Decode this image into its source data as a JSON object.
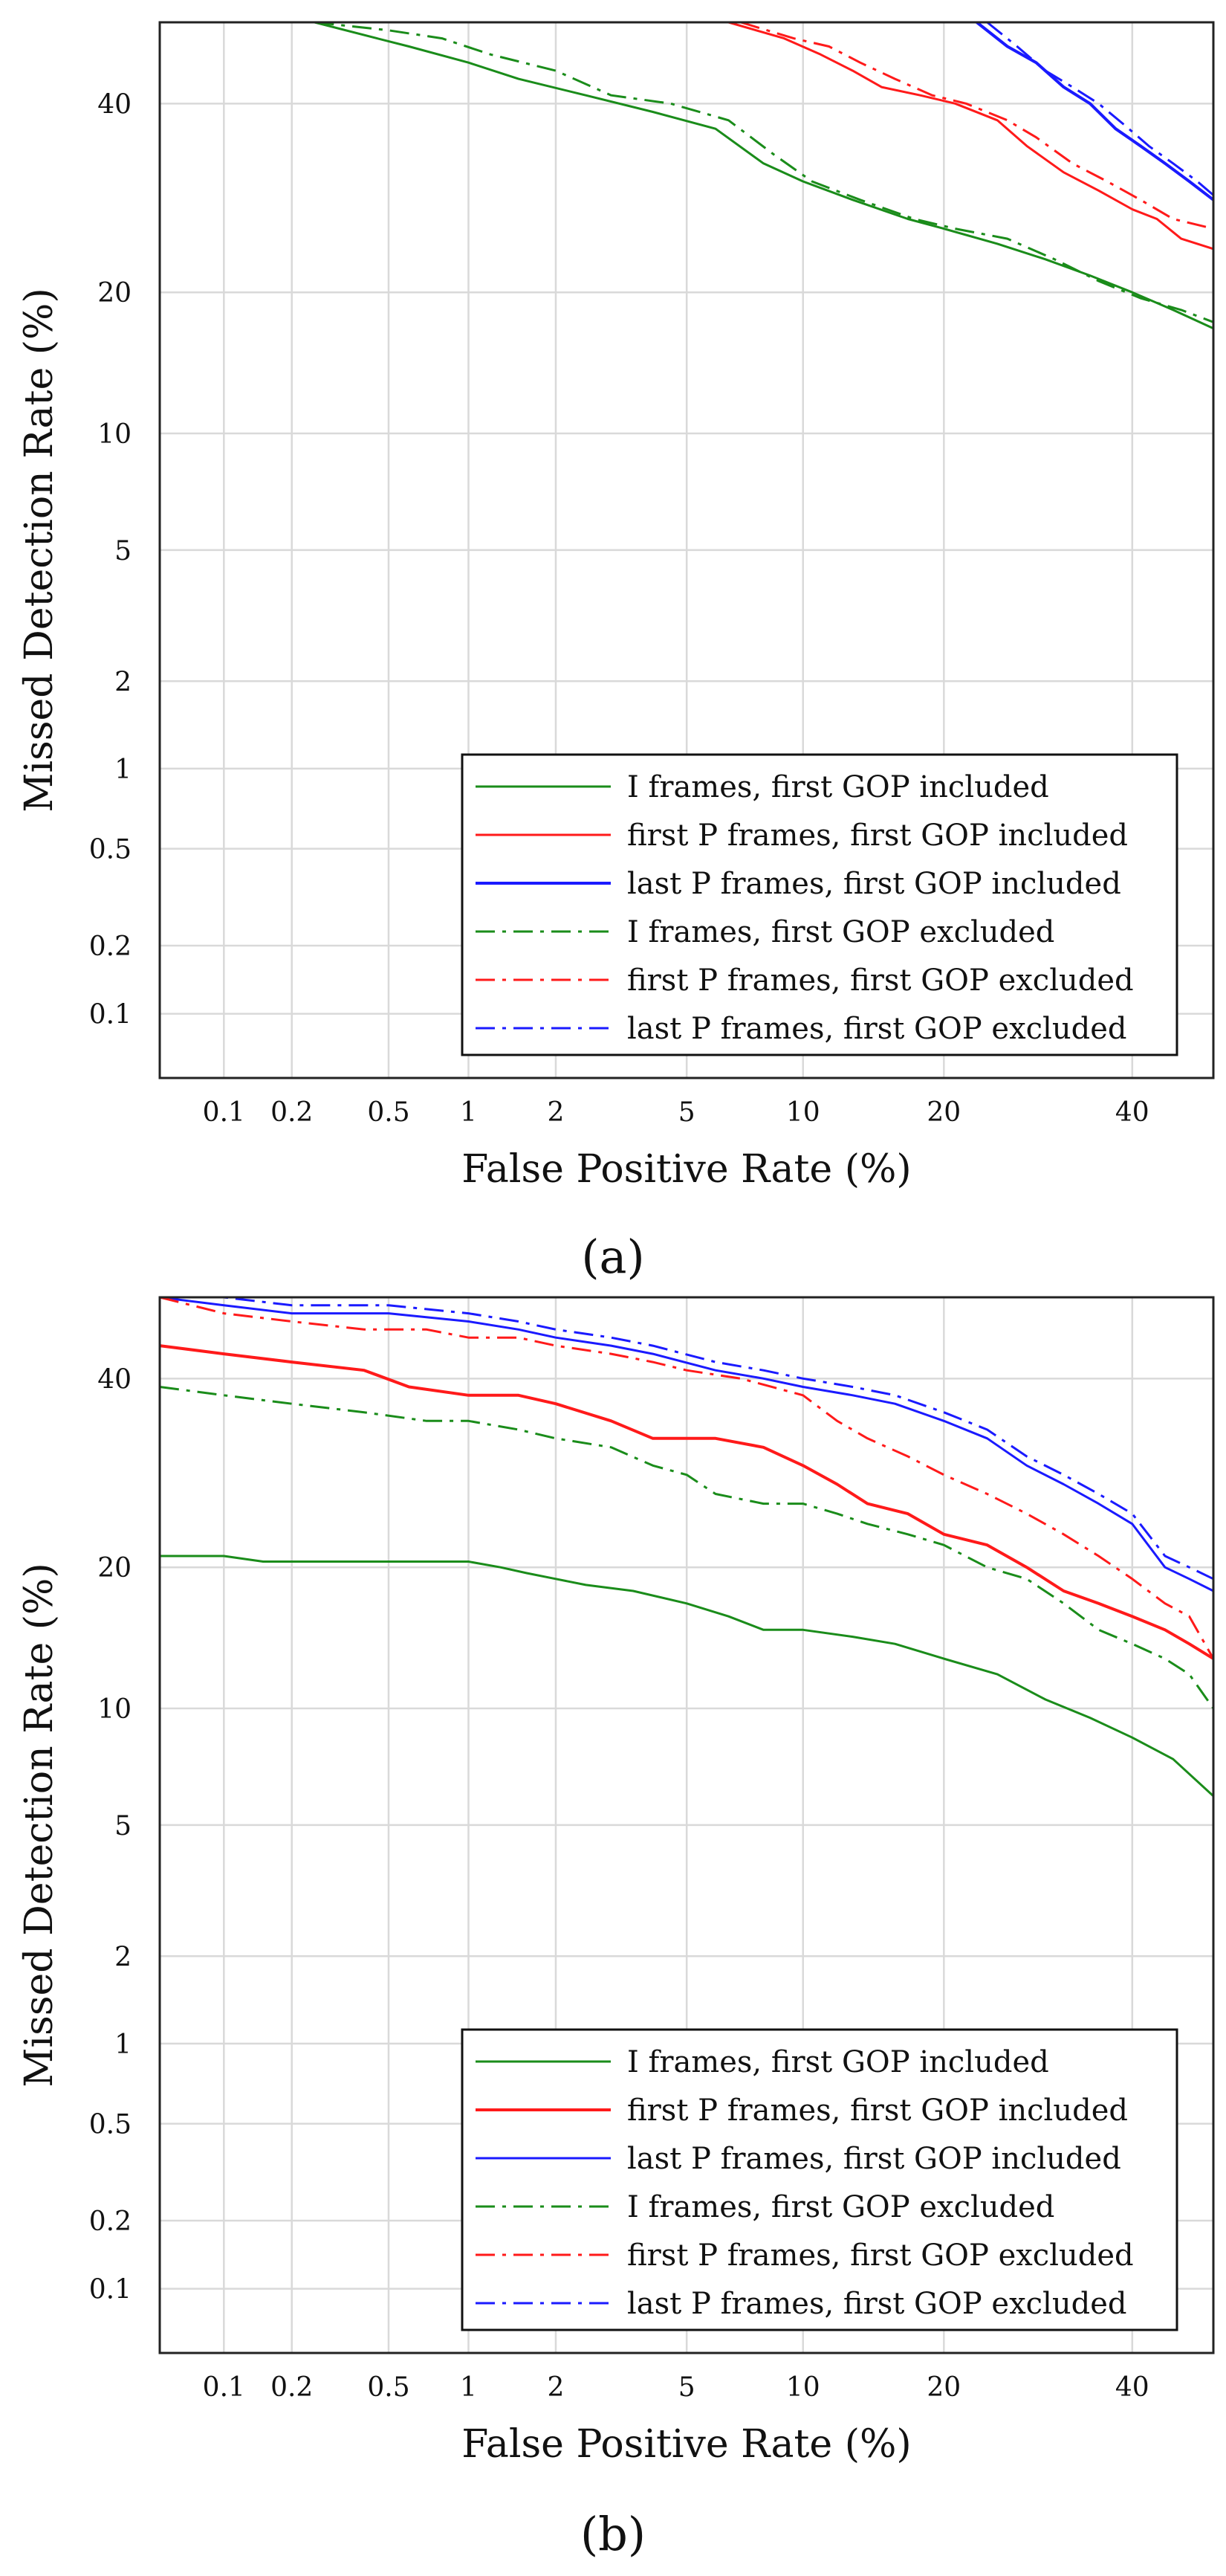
{
  "colors": {
    "green": "#1a8c1a",
    "red": "#ff1a1a",
    "blue": "#1a1aff",
    "grid": "#d9d9d9",
    "axis": "#222222"
  },
  "chart_data": [
    {
      "type": "line",
      "panel_label": "(a)",
      "xscale": "normal-deviate",
      "yscale": "normal-deviate",
      "xlabel": "False Positive Rate (%)",
      "ylabel": "Missed Detection Rate (%)",
      "xlim": [
        0.05,
        50
      ],
      "ylim": [
        0.05,
        50
      ],
      "xticks": [
        0.1,
        0.2,
        0.5,
        1,
        2,
        5,
        10,
        20,
        40
      ],
      "xtick_labels": [
        "0.1",
        "0.2",
        "0.5",
        "1",
        "2",
        "5",
        "10",
        "20",
        "40"
      ],
      "yticks": [
        0.1,
        0.2,
        0.5,
        1,
        2,
        5,
        10,
        20,
        40
      ],
      "ytick_labels": [
        "0.1",
        "0.2",
        "0.5",
        "1",
        "2",
        "5",
        "10",
        "20",
        "40"
      ],
      "grid": true,
      "legend_position": "bottom-right",
      "series": [
        {
          "name": "I frames, first GOP included",
          "color": "green",
          "dash": "solid",
          "width": 3,
          "x": [
            0.25,
            0.45,
            0.6,
            1.0,
            1.5,
            2.5,
            4.0,
            6.0,
            8.0,
            10.0,
            13.0,
            17.0,
            20.0,
            25.0,
            30.0,
            35.0,
            40.0,
            45.0,
            50.0
          ],
          "y": [
            50,
            48,
            47,
            45,
            43,
            41,
            39,
            37,
            33,
            31,
            29,
            27,
            26,
            24.5,
            23,
            21.5,
            20,
            18.5,
            17
          ]
        },
        {
          "name": "first P frames, first GOP included",
          "color": "red",
          "dash": "solid",
          "width": 3,
          "x": [
            6.5,
            9.0,
            11.0,
            13.0,
            15.0,
            18.0,
            21.0,
            25.0,
            28.0,
            32.0,
            36.0,
            40.0,
            43.0,
            46.0,
            50.0
          ],
          "y": [
            50,
            48,
            46,
            44,
            42,
            41,
            40,
            38,
            35,
            32,
            30,
            28,
            27,
            25,
            24
          ]
        },
        {
          "name": "last P frames, first GOP included",
          "color": "blue",
          "dash": "solid",
          "width": 4,
          "x": [
            23.0,
            26.0,
            29.0,
            32.0,
            35.0,
            38.0,
            41.0,
            44.0,
            47.0,
            50.0
          ],
          "y": [
            50,
            47,
            45,
            42,
            40,
            37,
            35,
            33,
            31,
            29
          ]
        },
        {
          "name": "I frames, first GOP excluded",
          "color": "green",
          "dash": "dashdot",
          "width": 3,
          "x": [
            0.25,
            0.5,
            0.8,
            1.2,
            2.0,
            3.0,
            4.5,
            6.5,
            8.5,
            10.5,
            13.5,
            17.5,
            21.0,
            26.0,
            31.0,
            36.0,
            41.0,
            46.0,
            50.0
          ],
          "y": [
            50,
            49,
            48,
            46,
            44,
            41,
            40,
            38,
            34,
            31,
            29,
            27,
            26,
            25,
            23,
            21,
            19.5,
            18.5,
            17.5
          ]
        },
        {
          "name": "first P frames, first GOP excluded",
          "color": "red",
          "dash": "dashdot",
          "width": 3,
          "x": [
            7.0,
            9.5,
            11.5,
            13.5,
            16.0,
            19.0,
            22.0,
            26.0,
            29.0,
            33.0,
            37.0,
            41.0,
            45.0,
            50.0
          ],
          "y": [
            50,
            48,
            47,
            45,
            43,
            41,
            40,
            38,
            36,
            33,
            31,
            29,
            27,
            26
          ]
        },
        {
          "name": "last P frames, first GOP excluded",
          "color": "blue",
          "dash": "dashdot",
          "width": 3,
          "x": [
            24.0,
            27.0,
            30.0,
            33.0,
            36.0,
            39.0,
            42.0,
            45.0,
            48.0,
            50.0
          ],
          "y": [
            50,
            47,
            44,
            42,
            40,
            37.5,
            35,
            33,
            31,
            29.5
          ]
        }
      ]
    },
    {
      "type": "line",
      "panel_label": "(b)",
      "xscale": "normal-deviate",
      "yscale": "normal-deviate",
      "xlabel": "False Positive Rate (%)",
      "ylabel": "Missed Detection Rate (%)",
      "xlim": [
        0.05,
        50
      ],
      "ylim": [
        0.05,
        50
      ],
      "xticks": [
        0.1,
        0.2,
        0.5,
        1,
        2,
        5,
        10,
        20,
        40
      ],
      "xtick_labels": [
        "0.1",
        "0.2",
        "0.5",
        "1",
        "2",
        "5",
        "10",
        "20",
        "40"
      ],
      "yticks": [
        0.1,
        0.2,
        0.5,
        1,
        2,
        5,
        10,
        20,
        40
      ],
      "ytick_labels": [
        "0.1",
        "0.2",
        "0.5",
        "1",
        "2",
        "5",
        "10",
        "20",
        "40"
      ],
      "grid": true,
      "legend_position": "bottom-right",
      "series": [
        {
          "name": "I frames, first GOP included",
          "color": "green",
          "dash": "solid",
          "width": 3,
          "x": [
            0.05,
            0.1,
            0.15,
            0.3,
            0.6,
            1.0,
            1.3,
            1.6,
            2.0,
            2.5,
            3.5,
            5.0,
            6.5,
            8.0,
            10.0,
            13.0,
            16.0,
            20.0,
            25.0,
            30.0,
            35.0,
            40.0,
            45.0,
            50.0
          ],
          "y": [
            21,
            21,
            20.5,
            20.5,
            20.5,
            20.5,
            20,
            19.5,
            19,
            18.5,
            18,
            17,
            16,
            15,
            15,
            14.5,
            14,
            13,
            12,
            10.5,
            9.5,
            8.5,
            7.5,
            6
          ]
        },
        {
          "name": "first P frames, first GOP included",
          "color": "red",
          "dash": "solid",
          "width": 4,
          "x": [
            0.05,
            0.1,
            0.2,
            0.4,
            0.6,
            1.0,
            1.5,
            2.0,
            3.0,
            4.0,
            6.0,
            8.0,
            10.0,
            12.0,
            14.0,
            17.0,
            20.0,
            24.0,
            28.0,
            32.0,
            36.0,
            40.0,
            44.0,
            47.0,
            50.0
          ],
          "y": [
            44,
            43,
            42,
            41,
            39,
            38,
            38,
            37,
            35,
            33,
            33,
            32,
            30,
            28,
            26,
            25,
            23,
            22,
            20,
            18,
            17,
            16,
            15,
            14,
            13
          ]
        },
        {
          "name": "last P frames, first GOP included",
          "color": "blue",
          "dash": "solid",
          "width": 3,
          "x": [
            0.05,
            0.1,
            0.2,
            0.5,
            1.0,
            1.5,
            2.0,
            3.0,
            4.0,
            6.0,
            8.0,
            10.0,
            13.0,
            16.0,
            20.0,
            24.0,
            28.0,
            32.0,
            36.0,
            40.0,
            44.0,
            47.0,
            50.0
          ],
          "y": [
            50,
            49,
            48,
            48,
            47,
            46,
            45,
            44,
            43,
            41,
            40,
            39,
            38,
            37,
            35,
            33,
            30,
            28,
            26,
            24,
            20,
            19,
            18
          ]
        },
        {
          "name": "I frames, first GOP excluded",
          "color": "green",
          "dash": "dashdot",
          "width": 3,
          "x": [
            0.05,
            0.1,
            0.2,
            0.4,
            0.7,
            1.0,
            1.5,
            2.0,
            3.0,
            4.0,
            5.0,
            6.0,
            8.0,
            10.0,
            12.0,
            14.0,
            17.0,
            20.0,
            24.0,
            28.0,
            32.0,
            36.0,
            40.0,
            44.0,
            47.0,
            50.0
          ],
          "y": [
            39,
            38,
            37,
            36,
            35,
            35,
            34,
            33,
            32,
            30,
            29,
            27,
            26,
            26,
            25,
            24,
            23,
            22,
            20,
            19,
            17,
            15,
            14,
            13,
            12,
            10
          ]
        },
        {
          "name": "first P frames, first GOP excluded",
          "color": "red",
          "dash": "dashdot",
          "width": 3,
          "x": [
            0.05,
            0.1,
            0.2,
            0.4,
            0.7,
            1.0,
            1.5,
            2.0,
            3.0,
            4.0,
            5.0,
            7.0,
            10.0,
            12.0,
            14.0,
            17.0,
            20.0,
            24.0,
            28.0,
            32.0,
            36.0,
            40.0,
            44.0,
            47.0,
            50.0
          ],
          "y": [
            50,
            48,
            47,
            46,
            46,
            45,
            45,
            44,
            43,
            42,
            41,
            40,
            38,
            35,
            33,
            31,
            29,
            27,
            25,
            23,
            21,
            19,
            17,
            16,
            13
          ]
        },
        {
          "name": "last P frames, first GOP excluded",
          "color": "blue",
          "dash": "dashdot",
          "width": 3,
          "x": [
            0.05,
            0.1,
            0.2,
            0.5,
            1.0,
            1.5,
            2.0,
            3.0,
            4.0,
            6.0,
            8.0,
            10.0,
            13.0,
            16.0,
            20.0,
            24.0,
            28.0,
            32.0,
            36.0,
            40.0,
            44.0,
            47.0,
            50.0
          ],
          "y": [
            50,
            50,
            49,
            49,
            48,
            47,
            46,
            45,
            44,
            42,
            41,
            40,
            39,
            38,
            36,
            34,
            31,
            29,
            27,
            25,
            21,
            20,
            19
          ]
        }
      ]
    }
  ]
}
